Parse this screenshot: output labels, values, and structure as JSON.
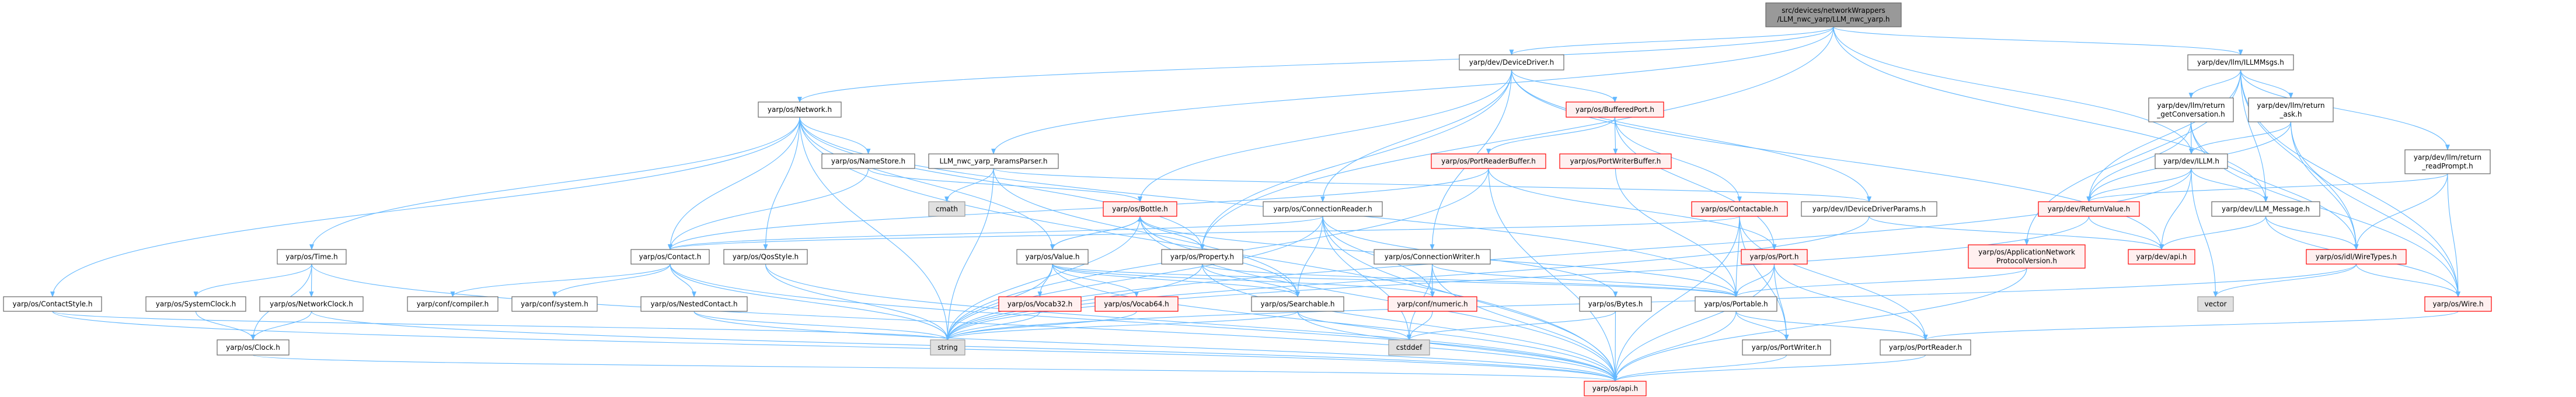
{
  "diagram": {
    "colors": {
      "edge": "#63b8ff",
      "node_border": "#666666",
      "node_fill": "#ffffff",
      "root_fill": "#999999",
      "missing_border": "#ff0000",
      "missing_fill": "#fff0f0",
      "system_fill": "#e0e0e0",
      "system_border": "#999999"
    },
    "nodes": {
      "root": {
        "lines": [
          "src/devices/networkWrappers",
          "/LLM_nwc_yarp/LLM_nwc_yarp.h"
        ],
        "kind": "root"
      },
      "devicedriver": {
        "lines": [
          "yarp/dev/DeviceDriver.h"
        ],
        "kind": "normal"
      },
      "network": {
        "lines": [
          "yarp/os/Network.h"
        ],
        "kind": "normal"
      },
      "paramsparser": {
        "lines": [
          "LLM_nwc_yarp_ParamsParser.h"
        ],
        "kind": "normal"
      },
      "illmmsgs": {
        "lines": [
          "yarp/dev/llm/ILLMMsgs.h"
        ],
        "kind": "normal"
      },
      "bufferedport": {
        "lines": [
          "yarp/os/BufferedPort.h"
        ],
        "kind": "missing"
      },
      "namestore": {
        "lines": [
          "yarp/os/NameStore.h"
        ],
        "kind": "normal"
      },
      "portreaderbuffer": {
        "lines": [
          "yarp/os/PortReaderBuffer.h"
        ],
        "kind": "missing"
      },
      "portwriterbuffer": {
        "lines": [
          "yarp/os/PortWriterBuffer.h"
        ],
        "kind": "missing"
      },
      "getconversation": {
        "lines": [
          "yarp/dev/llm/return",
          "_getConversation.h"
        ],
        "kind": "normal"
      },
      "ask": {
        "lines": [
          "yarp/dev/llm/return",
          "_ask.h"
        ],
        "kind": "normal"
      },
      "illm": {
        "lines": [
          "yarp/dev/ILLM.h"
        ],
        "kind": "normal"
      },
      "readprompt": {
        "lines": [
          "yarp/dev/llm/return",
          "_readPrompt.h"
        ],
        "kind": "normal"
      },
      "cmath": {
        "lines": [
          "cmath"
        ],
        "kind": "system"
      },
      "bottle": {
        "lines": [
          "yarp/os/Bottle.h"
        ],
        "kind": "missing"
      },
      "connectionreader": {
        "lines": [
          "yarp/os/ConnectionReader.h"
        ],
        "kind": "normal"
      },
      "contactable": {
        "lines": [
          "yarp/os/Contactable.h"
        ],
        "kind": "missing"
      },
      "ideviceparams": {
        "lines": [
          "yarp/dev/IDeviceDriverParams.h"
        ],
        "kind": "normal"
      },
      "returnvalue": {
        "lines": [
          "yarp/dev/ReturnValue.h"
        ],
        "kind": "missing"
      },
      "llmmessage": {
        "lines": [
          "yarp/dev/LLM_Message.h"
        ],
        "kind": "normal"
      },
      "time": {
        "lines": [
          "yarp/os/Time.h"
        ],
        "kind": "normal"
      },
      "contact": {
        "lines": [
          "yarp/os/Contact.h"
        ],
        "kind": "normal"
      },
      "qosstyle": {
        "lines": [
          "yarp/os/QosStyle.h"
        ],
        "kind": "normal"
      },
      "value": {
        "lines": [
          "yarp/os/Value.h"
        ],
        "kind": "normal"
      },
      "property": {
        "lines": [
          "yarp/os/Property.h"
        ],
        "kind": "normal"
      },
      "connectionwriter": {
        "lines": [
          "yarp/os/ConnectionWriter.h"
        ],
        "kind": "normal"
      },
      "port": {
        "lines": [
          "yarp/os/Port.h"
        ],
        "kind": "missing"
      },
      "appnetproto": {
        "lines": [
          "yarp/os/ApplicationNetwork",
          "ProtocolVersion.h"
        ],
        "kind": "missing"
      },
      "devapi": {
        "lines": [
          "yarp/dev/api.h"
        ],
        "kind": "missing"
      },
      "wiretypes": {
        "lines": [
          "yarp/os/idl/WireTypes.h"
        ],
        "kind": "missing"
      },
      "contactstyle": {
        "lines": [
          "yarp/os/ContactStyle.h"
        ],
        "kind": "normal"
      },
      "systemclock": {
        "lines": [
          "yarp/os/SystemClock.h"
        ],
        "kind": "normal"
      },
      "networkclock": {
        "lines": [
          "yarp/os/NetworkClock.h"
        ],
        "kind": "normal"
      },
      "compiler": {
        "lines": [
          "yarp/conf/compiler.h"
        ],
        "kind": "normal"
      },
      "system": {
        "lines": [
          "yarp/conf/system.h"
        ],
        "kind": "normal"
      },
      "nestedcontact": {
        "lines": [
          "yarp/os/NestedContact.h"
        ],
        "kind": "normal"
      },
      "vocab32": {
        "lines": [
          "yarp/os/Vocab32.h"
        ],
        "kind": "missing"
      },
      "vocab64": {
        "lines": [
          "yarp/os/Vocab64.h"
        ],
        "kind": "missing"
      },
      "searchable": {
        "lines": [
          "yarp/os/Searchable.h"
        ],
        "kind": "normal"
      },
      "numeric": {
        "lines": [
          "yarp/conf/numeric.h"
        ],
        "kind": "missing"
      },
      "bytes": {
        "lines": [
          "yarp/os/Bytes.h"
        ],
        "kind": "normal"
      },
      "portable": {
        "lines": [
          "yarp/os/Portable.h"
        ],
        "kind": "normal"
      },
      "vector": {
        "lines": [
          "vector"
        ],
        "kind": "system"
      },
      "wire": {
        "lines": [
          "yarp/os/Wire.h"
        ],
        "kind": "missing"
      },
      "clock": {
        "lines": [
          "yarp/os/Clock.h"
        ],
        "kind": "normal"
      },
      "string": {
        "lines": [
          "string"
        ],
        "kind": "system"
      },
      "cstddef": {
        "lines": [
          "cstddef"
        ],
        "kind": "system"
      },
      "portwriter": {
        "lines": [
          "yarp/os/PortWriter.h"
        ],
        "kind": "normal"
      },
      "portreader": {
        "lines": [
          "yarp/os/PortReader.h"
        ],
        "kind": "normal"
      },
      "osapi": {
        "lines": [
          "yarp/os/api.h"
        ],
        "kind": "missing"
      }
    },
    "edges": [
      [
        "root",
        "devicedriver"
      ],
      [
        "root",
        "network"
      ],
      [
        "root",
        "paramsparser"
      ],
      [
        "root",
        "illmmsgs"
      ],
      [
        "root",
        "illm"
      ],
      [
        "root",
        "llmmessage"
      ],
      [
        "root",
        "property"
      ],
      [
        "devicedriver",
        "bufferedport"
      ],
      [
        "devicedriver",
        "connectionreader"
      ],
      [
        "devicedriver",
        "connectionwriter"
      ],
      [
        "devicedriver",
        "ideviceparams"
      ],
      [
        "devicedriver",
        "property"
      ],
      [
        "devicedriver",
        "devapi"
      ],
      [
        "devicedriver",
        "bottle"
      ],
      [
        "network",
        "contactstyle"
      ],
      [
        "network",
        "time"
      ],
      [
        "network",
        "contact"
      ],
      [
        "network",
        "qosstyle"
      ],
      [
        "network",
        "namestore"
      ],
      [
        "network",
        "value"
      ],
      [
        "network",
        "property"
      ],
      [
        "network",
        "portable"
      ],
      [
        "network",
        "osapi"
      ],
      [
        "network",
        "string"
      ],
      [
        "namestore",
        "contact"
      ],
      [
        "namestore",
        "bottle"
      ],
      [
        "paramsparser",
        "cmath"
      ],
      [
        "paramsparser",
        "string"
      ],
      [
        "paramsparser",
        "searchable"
      ],
      [
        "paramsparser",
        "ideviceparams"
      ],
      [
        "time",
        "systemclock"
      ],
      [
        "time",
        "networkclock"
      ],
      [
        "time",
        "clock"
      ],
      [
        "time",
        "osapi"
      ],
      [
        "systemclock",
        "clock"
      ],
      [
        "networkclock",
        "clock"
      ],
      [
        "networkclock",
        "osapi"
      ],
      [
        "clock",
        "osapi"
      ],
      [
        "contactstyle",
        "osapi"
      ],
      [
        "contactstyle",
        "string"
      ],
      [
        "contact",
        "compiler"
      ],
      [
        "contact",
        "system"
      ],
      [
        "contact",
        "nestedcontact"
      ],
      [
        "contact",
        "string"
      ],
      [
        "contact",
        "osapi"
      ],
      [
        "nestedcontact",
        "string"
      ],
      [
        "nestedcontact",
        "osapi"
      ],
      [
        "qosstyle",
        "string"
      ],
      [
        "qosstyle",
        "osapi"
      ],
      [
        "bottle",
        "value"
      ],
      [
        "bottle",
        "property"
      ],
      [
        "bottle",
        "searchable"
      ],
      [
        "bottle",
        "portable"
      ],
      [
        "bottle",
        "string"
      ],
      [
        "bottle",
        "osapi"
      ],
      [
        "value",
        "bottle"
      ],
      [
        "value",
        "vocab32"
      ],
      [
        "value",
        "vocab64"
      ],
      [
        "value",
        "searchable"
      ],
      [
        "value",
        "numeric"
      ],
      [
        "value",
        "portable"
      ],
      [
        "value",
        "string"
      ],
      [
        "value",
        "osapi"
      ],
      [
        "property",
        "bottle"
      ],
      [
        "property",
        "searchable"
      ],
      [
        "property",
        "portable"
      ],
      [
        "property",
        "string"
      ],
      [
        "property",
        "osapi"
      ],
      [
        "vocab32",
        "string"
      ],
      [
        "vocab64",
        "string"
      ],
      [
        "searchable",
        "cstddef"
      ],
      [
        "searchable",
        "osapi"
      ],
      [
        "searchable",
        "string"
      ],
      [
        "bufferedport",
        "portreaderbuffer"
      ],
      [
        "bufferedport",
        "portwriterbuffer"
      ],
      [
        "bufferedport",
        "contactable"
      ],
      [
        "bufferedport",
        "port"
      ],
      [
        "portreaderbuffer",
        "contact"
      ],
      [
        "portreaderbuffer",
        "string"
      ],
      [
        "portreaderbuffer",
        "port"
      ],
      [
        "portreaderbuffer",
        "osapi"
      ],
      [
        "portwriterbuffer",
        "portable"
      ],
      [
        "connectionreader",
        "searchable"
      ],
      [
        "connectionreader",
        "numeric"
      ],
      [
        "connectionreader",
        "contact"
      ],
      [
        "connectionreader",
        "bytes"
      ],
      [
        "connectionreader",
        "osapi"
      ],
      [
        "connectionreader",
        "cstddef"
      ],
      [
        "connectionreader",
        "string"
      ],
      [
        "connectionwriter",
        "numeric"
      ],
      [
        "connectionwriter",
        "cstddef"
      ],
      [
        "connectionwriter",
        "portable"
      ],
      [
        "connectionwriter",
        "osapi"
      ],
      [
        "contactable",
        "contact"
      ],
      [
        "contactable",
        "portable"
      ],
      [
        "contactable",
        "portwriter"
      ],
      [
        "contactable",
        "portreader"
      ],
      [
        "contactable",
        "osapi"
      ],
      [
        "ideviceparams",
        "devapi"
      ],
      [
        "ideviceparams",
        "string"
      ],
      [
        "port",
        "portable"
      ],
      [
        "port",
        "portwriter"
      ],
      [
        "port",
        "portreader"
      ],
      [
        "port",
        "osapi"
      ],
      [
        "numeric",
        "cstddef"
      ],
      [
        "bytes",
        "cstddef"
      ],
      [
        "bytes",
        "osapi"
      ],
      [
        "portable",
        "portwriter"
      ],
      [
        "portable",
        "portreader"
      ],
      [
        "portable",
        "osapi"
      ],
      [
        "portwriter",
        "osapi"
      ],
      [
        "portreader",
        "osapi"
      ],
      [
        "illmmsgs",
        "getconversation"
      ],
      [
        "illmmsgs",
        "ask"
      ],
      [
        "illmmsgs",
        "readprompt"
      ],
      [
        "illmmsgs",
        "returnvalue"
      ],
      [
        "illmmsgs",
        "appnetproto"
      ],
      [
        "illmmsgs",
        "wiretypes"
      ],
      [
        "illmmsgs",
        "wire"
      ],
      [
        "illmmsgs",
        "llmmessage"
      ],
      [
        "getconversation",
        "illm"
      ],
      [
        "getconversation",
        "returnvalue"
      ],
      [
        "getconversation",
        "wiretypes"
      ],
      [
        "getconversation",
        "wire"
      ],
      [
        "ask",
        "illm"
      ],
      [
        "ask",
        "returnvalue"
      ],
      [
        "ask",
        "wiretypes"
      ],
      [
        "ask",
        "wire"
      ],
      [
        "readprompt",
        "returnvalue"
      ],
      [
        "readprompt",
        "wiretypes"
      ],
      [
        "readprompt",
        "wire"
      ],
      [
        "illm",
        "returnvalue"
      ],
      [
        "illm",
        "devapi"
      ],
      [
        "illm",
        "llmmessage"
      ],
      [
        "illm",
        "vector"
      ],
      [
        "illm",
        "string"
      ],
      [
        "returnvalue",
        "devapi"
      ],
      [
        "returnvalue",
        "string"
      ],
      [
        "llmmessage",
        "devapi"
      ],
      [
        "llmmessage",
        "wiretypes"
      ],
      [
        "llmmessage",
        "wire"
      ],
      [
        "appnetproto",
        "portable"
      ],
      [
        "appnetproto",
        "osapi"
      ],
      [
        "wiretypes",
        "vector"
      ],
      [
        "wiretypes",
        "wire"
      ],
      [
        "wiretypes",
        "string"
      ],
      [
        "wire",
        "portreader"
      ]
    ]
  }
}
